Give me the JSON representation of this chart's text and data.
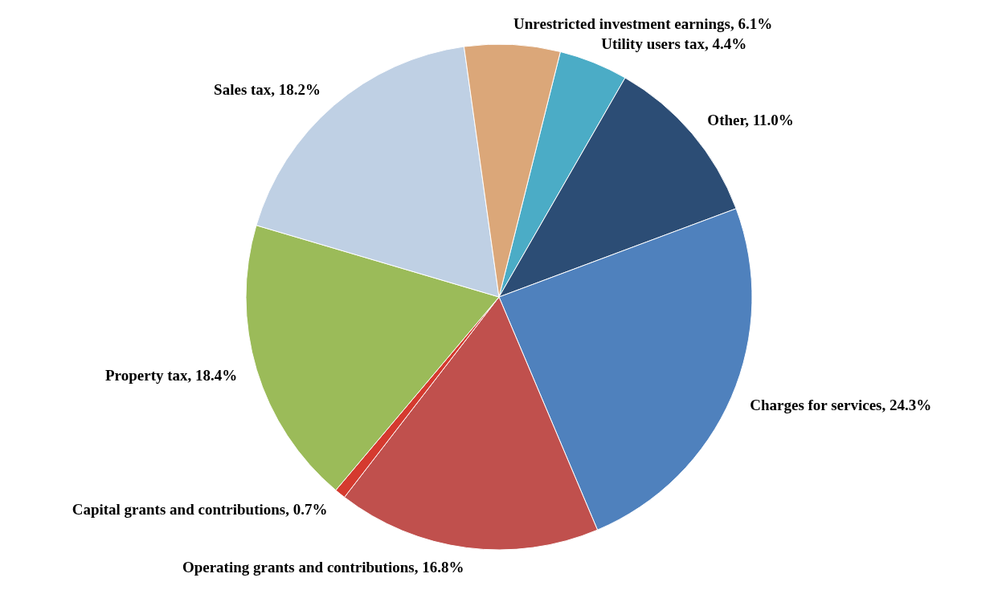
{
  "chart_data": {
    "type": "pie",
    "categories": [
      "Utility users tax, 4.4%",
      "Other, 11.0%",
      "Charges for services, 24.3%",
      "Operating grants and contributions, 16.8%",
      "Capital grants and contributions, 0.7%",
      "Property tax, 18.4%",
      "Sales tax, 18.2%",
      "Unrestricted investment earnings, 6.1%"
    ],
    "values": [
      4.4,
      11.0,
      24.3,
      16.8,
      0.7,
      18.4,
      18.2,
      6.1
    ],
    "colors": [
      "#4bacc6",
      "#2c4d75",
      "#4f81bd",
      "#c0504d",
      "#d53a2f",
      "#9bbb59",
      "#bfd0e4",
      "#dba779"
    ]
  }
}
